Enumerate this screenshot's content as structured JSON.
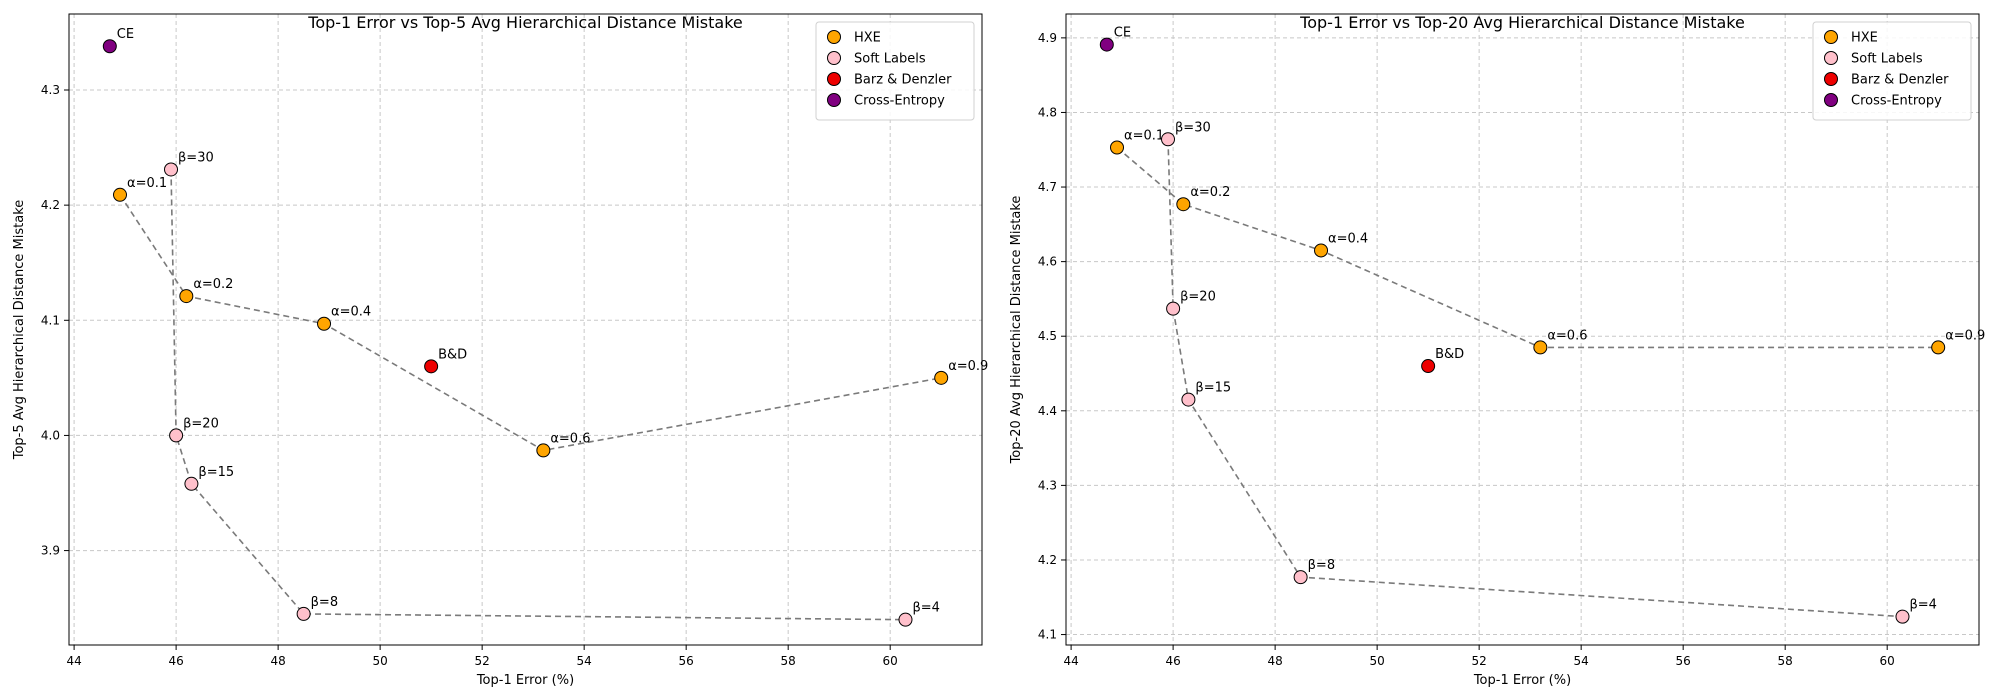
{
  "chart_data": [
    {
      "type": "scatter",
      "title": "Top-1 Error vs Top-5 Avg Hierarchical Distance Mistake",
      "xlabel": "Top-1 Error (%)",
      "ylabel": "Top-5 Avg Hierarchical Distance Mistake",
      "xlim": [
        43.9,
        61.8
      ],
      "ylim": [
        3.818,
        4.366
      ],
      "xticks": [
        44,
        46,
        48,
        50,
        52,
        54,
        56,
        58,
        60
      ],
      "yticks": [
        3.9,
        4.0,
        4.1,
        4.2,
        4.3
      ],
      "xtick_labels": [
        "44",
        "46",
        "48",
        "50",
        "52",
        "54",
        "56",
        "58",
        "60"
      ],
      "ytick_labels": [
        "3.9",
        "4.0",
        "4.1",
        "4.2",
        "4.3"
      ],
      "grid": true,
      "legend_position": "top-right",
      "legend": [
        "HXE",
        "Soft Labels",
        "Barz & Denzler",
        "Cross-Entropy"
      ],
      "series": [
        {
          "name": "HXE",
          "color": "#ffa500",
          "connected": true,
          "points": [
            {
              "x": 44.9,
              "y": 4.209,
              "label": "α=0.1"
            },
            {
              "x": 46.2,
              "y": 4.121,
              "label": "α=0.2"
            },
            {
              "x": 48.9,
              "y": 4.097,
              "label": "α=0.4"
            },
            {
              "x": 53.2,
              "y": 3.987,
              "label": "α=0.6"
            },
            {
              "x": 61.0,
              "y": 4.05,
              "label": "α=0.9"
            }
          ]
        },
        {
          "name": "Soft Labels",
          "color": "#ffc0cb",
          "connected": true,
          "points": [
            {
              "x": 45.9,
              "y": 4.231,
              "label": "β=30"
            },
            {
              "x": 46.0,
              "y": 4.0,
              "label": "β=20"
            },
            {
              "x": 46.3,
              "y": 3.958,
              "label": "β=15"
            },
            {
              "x": 48.5,
              "y": 3.845,
              "label": "β=8"
            },
            {
              "x": 60.3,
              "y": 3.84,
              "label": "β=4"
            }
          ]
        },
        {
          "name": "Barz & Denzler",
          "color": "#ee0000",
          "connected": false,
          "points": [
            {
              "x": 51.0,
              "y": 4.06,
              "label": "B&D"
            }
          ]
        },
        {
          "name": "Cross-Entropy",
          "color": "#800080",
          "connected": false,
          "points": [
            {
              "x": 44.7,
              "y": 4.338,
              "label": "CE"
            }
          ]
        }
      ]
    },
    {
      "type": "scatter",
      "title": "Top-1 Error vs Top-20 Avg Hierarchical Distance Mistake",
      "xlabel": "Top-1 Error (%)",
      "ylabel": "Top-20 Avg Hierarchical Distance Mistake",
      "xlim": [
        43.9,
        61.8
      ],
      "ylim": [
        4.086,
        4.932
      ],
      "xticks": [
        44,
        46,
        48,
        50,
        52,
        54,
        56,
        58,
        60
      ],
      "yticks": [
        4.1,
        4.2,
        4.3,
        4.4,
        4.5,
        4.6,
        4.7,
        4.8,
        4.9
      ],
      "xtick_labels": [
        "44",
        "46",
        "48",
        "50",
        "52",
        "54",
        "56",
        "58",
        "60"
      ],
      "ytick_labels": [
        "4.1",
        "4.2",
        "4.3",
        "4.4",
        "4.5",
        "4.6",
        "4.7",
        "4.8",
        "4.9"
      ],
      "grid": true,
      "legend_position": "top-right",
      "legend": [
        "HXE",
        "Soft Labels",
        "Barz & Denzler",
        "Cross-Entropy"
      ],
      "series": [
        {
          "name": "HXE",
          "color": "#ffa500",
          "connected": true,
          "points": [
            {
              "x": 44.9,
              "y": 4.753,
              "label": "α=0.1"
            },
            {
              "x": 46.2,
              "y": 4.677,
              "label": "α=0.2"
            },
            {
              "x": 48.9,
              "y": 4.615,
              "label": "α=0.4"
            },
            {
              "x": 53.2,
              "y": 4.485,
              "label": "α=0.6"
            },
            {
              "x": 61.0,
              "y": 4.485,
              "label": "α=0.9"
            }
          ]
        },
        {
          "name": "Soft Labels",
          "color": "#ffc0cb",
          "connected": true,
          "points": [
            {
              "x": 45.9,
              "y": 4.764,
              "label": "β=30"
            },
            {
              "x": 46.0,
              "y": 4.537,
              "label": "β=20"
            },
            {
              "x": 46.3,
              "y": 4.415,
              "label": "β=15"
            },
            {
              "x": 48.5,
              "y": 4.177,
              "label": "β=8"
            },
            {
              "x": 60.3,
              "y": 4.124,
              "label": "β=4"
            }
          ]
        },
        {
          "name": "Barz & Denzler",
          "color": "#ee0000",
          "connected": false,
          "points": [
            {
              "x": 51.0,
              "y": 4.46,
              "label": "B&D"
            }
          ]
        },
        {
          "name": "Cross-Entropy",
          "color": "#800080",
          "connected": false,
          "points": [
            {
              "x": 44.7,
              "y": 4.891,
              "label": "CE"
            }
          ]
        }
      ]
    }
  ]
}
